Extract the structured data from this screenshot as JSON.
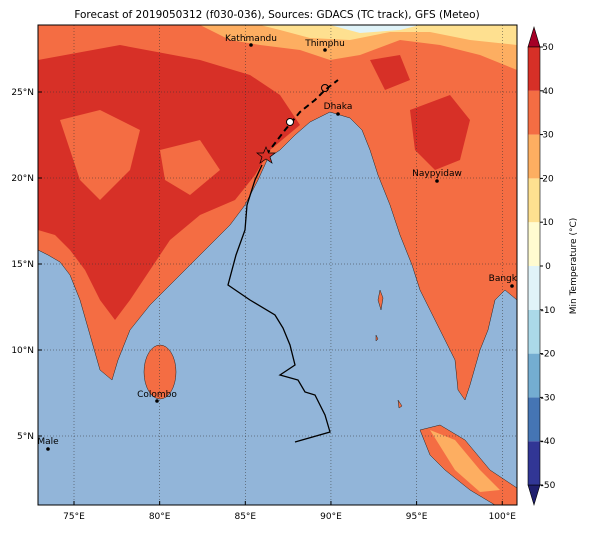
{
  "title": "Forecast of 2019050312 (f030-036), Sources: GDACS (TC track), GFS (Meteo)",
  "lon_ticks": [
    {
      "value": 75,
      "label": "75°E"
    },
    {
      "value": 80,
      "label": "80°E"
    },
    {
      "value": 85,
      "label": "85°E"
    },
    {
      "value": 90,
      "label": "90°E"
    },
    {
      "value": 95,
      "label": "95°E"
    },
    {
      "value": 100,
      "label": "100°E"
    }
  ],
  "lat_ticks": [
    {
      "value": 25,
      "label": "25°N"
    },
    {
      "value": 20,
      "label": "20°N"
    },
    {
      "value": 15,
      "label": "15°N"
    },
    {
      "value": 10,
      "label": "10°N"
    },
    {
      "value": 5,
      "label": "5°N"
    }
  ],
  "cities": [
    "Kathmandu",
    "Thimphu",
    "Dhaka",
    "Naypyidaw",
    "Bangkok",
    "Colombo",
    "Male"
  ],
  "colorbar": {
    "label": "Min Temperature (°C)",
    "ticks": [
      -50,
      -40,
      -30,
      -20,
      -10,
      0,
      10,
      20,
      30,
      40,
      50
    ],
    "colors": [
      "#313695",
      "#4575b4",
      "#74add1",
      "#abd9e9",
      "#e0f3f8",
      "#fffbd0",
      "#fee090",
      "#fdae61",
      "#f46d43",
      "#d73027"
    ]
  }
}
